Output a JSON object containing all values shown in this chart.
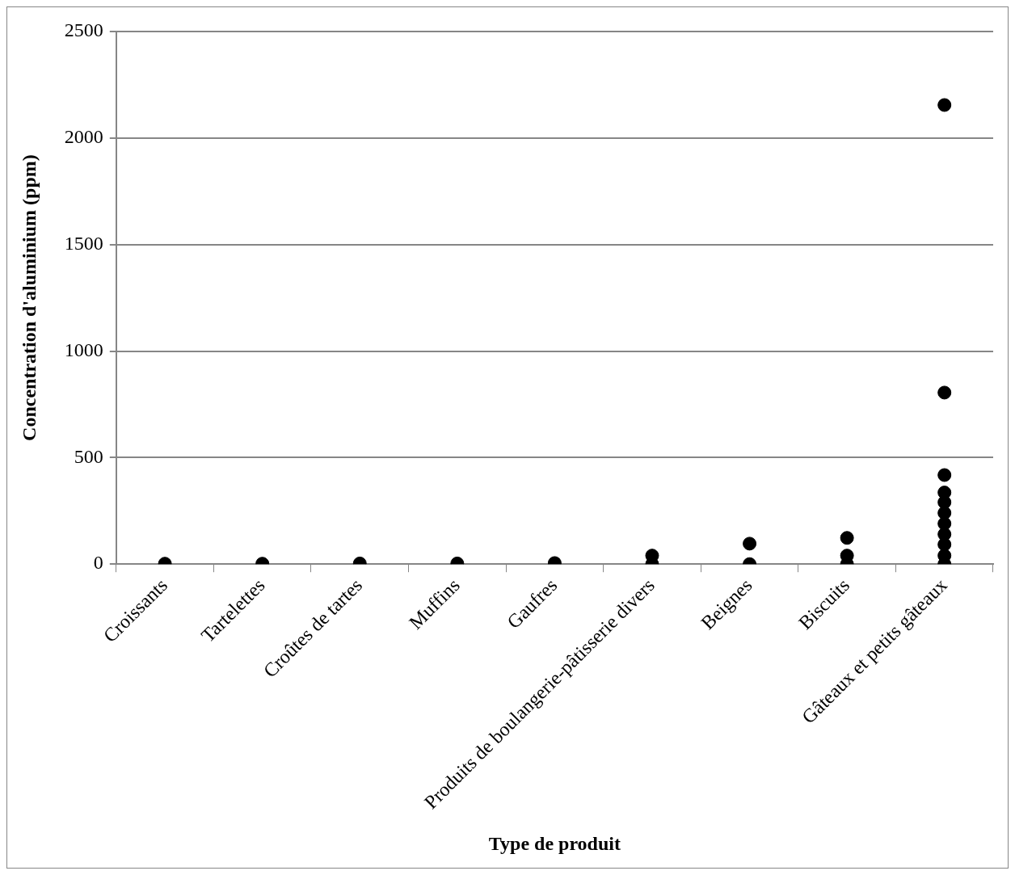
{
  "chart_data": {
    "type": "scatter",
    "xlabel": "Type de produit",
    "ylabel": "Concentration d'aluminium (ppm)",
    "categories": [
      "Croissants",
      "Tartelettes",
      "Croûtes de tartes",
      "Muffins",
      "Gaufres",
      "Produits de boulangerie-pâtisserie divers",
      "Beignes",
      "Biscuits",
      "Gâteaux et petits gâteaux"
    ],
    "series": [
      {
        "color": "#000000",
        "x": [
          "Croissants",
          "Tartelettes",
          "Croûtes de tartes",
          "Muffins",
          "Gaufres",
          "Produits de boulangerie-pâtisserie divers",
          "Produits de boulangerie-pâtisserie divers",
          "Beignes",
          "Beignes",
          "Biscuits",
          "Biscuits",
          "Biscuits",
          "Gâteaux et petits gâteaux",
          "Gâteaux et petits gâteaux",
          "Gâteaux et petits gâteaux",
          "Gâteaux et petits gâteaux",
          "Gâteaux et petits gâteaux",
          "Gâteaux et petits gâteaux",
          "Gâteaux et petits gâteaux",
          "Gâteaux et petits gâteaux",
          "Gâteaux et petits gâteaux",
          "Gâteaux et petits gâteaux",
          "Gâteaux et petits gâteaux"
        ],
        "values": [
          2,
          2,
          3,
          3,
          5,
          0,
          40,
          0,
          96,
          0,
          40,
          123,
          0,
          40,
          92,
          140,
          190,
          240,
          290,
          336,
          418,
          805,
          2155
        ]
      }
    ],
    "ylim": [
      0,
      2500
    ],
    "yticks": [
      0,
      500,
      1000,
      1500,
      2000,
      2500
    ],
    "grid": "y",
    "legend": false,
    "marker": "circle"
  }
}
